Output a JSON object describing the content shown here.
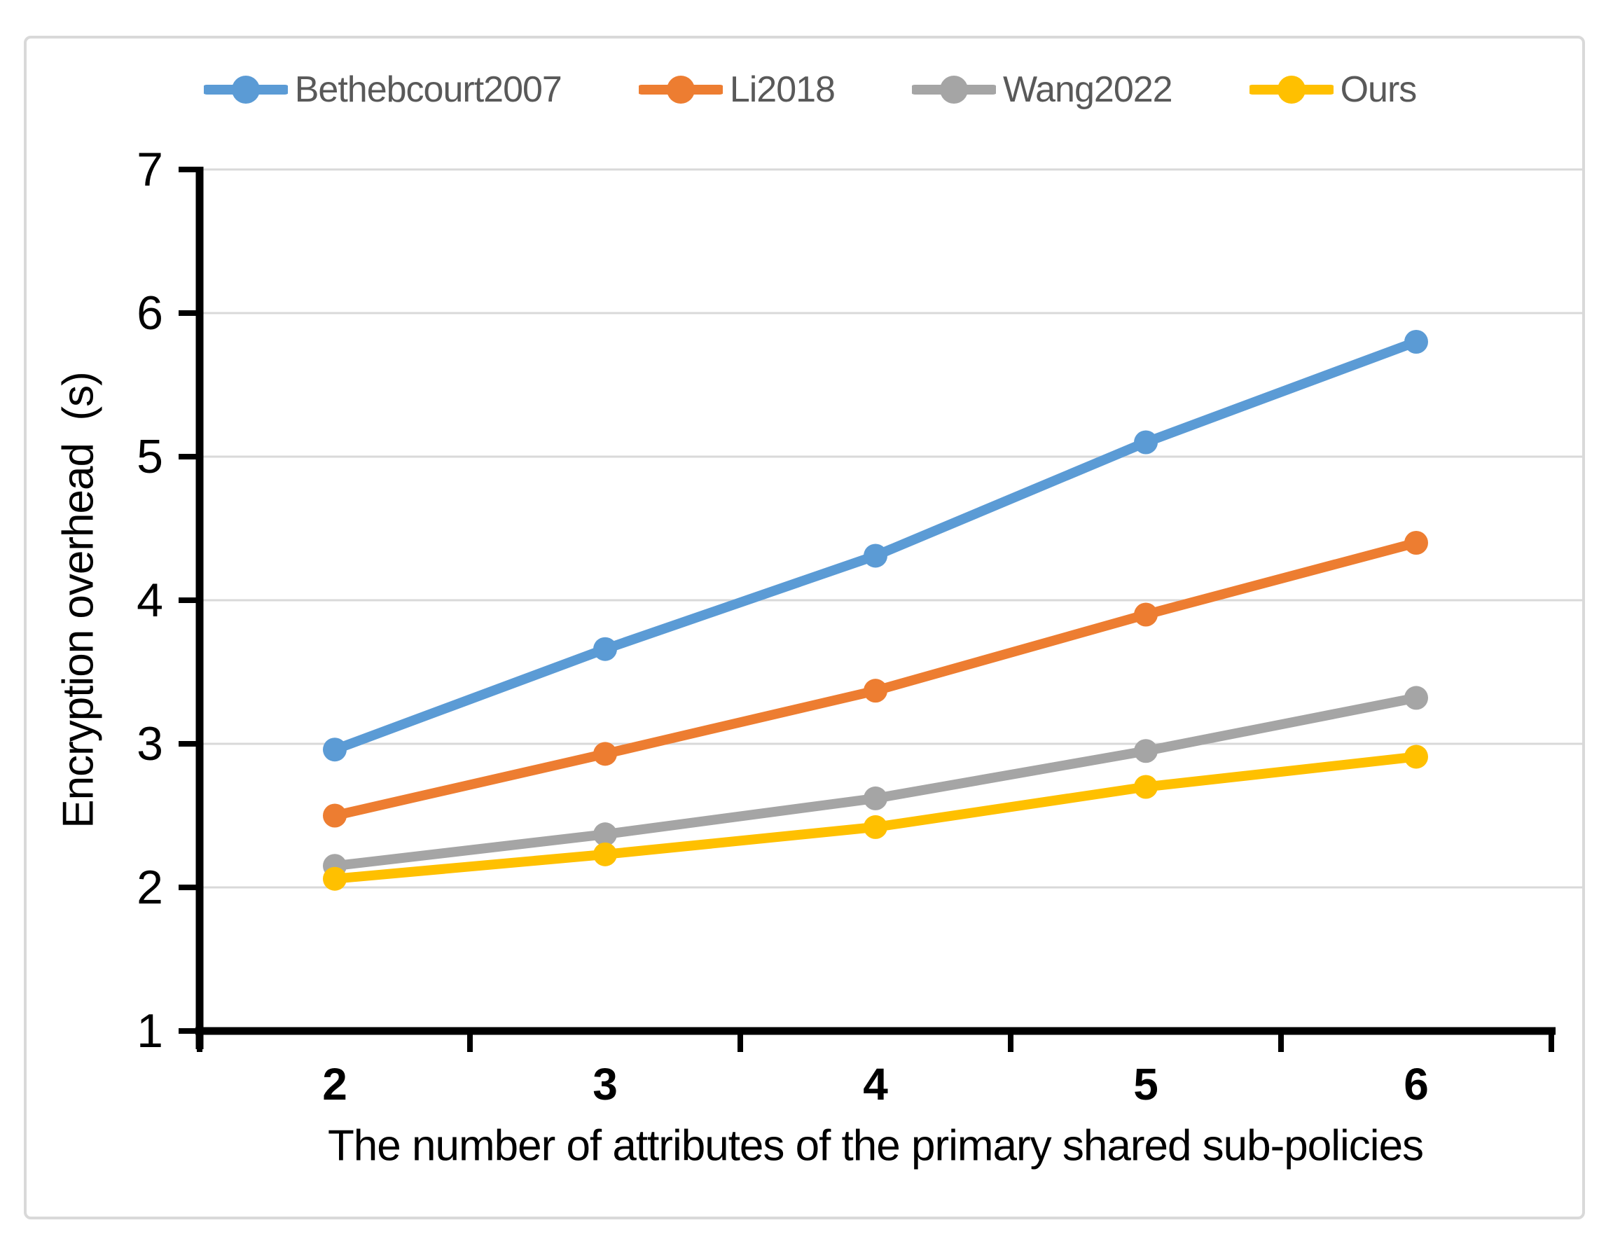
{
  "figure": {
    "type_note": "line chart figure with outer light-gray rounded frame"
  },
  "chart_data": {
    "type": "line",
    "x": [
      2,
      3,
      4,
      5,
      6
    ],
    "xlabel": "The number of attributes of the primary shared sub-policies",
    "ylabel": "Encryption overhead  (s)",
    "ylim": [
      1,
      7
    ],
    "yticks": [
      1,
      2,
      3,
      4,
      5,
      6,
      7
    ],
    "xticks": [
      2,
      3,
      4,
      5,
      6
    ],
    "grid": "horizontal",
    "legend_position": "top-center",
    "series": [
      {
        "name": "Bethebcourt2007",
        "color": "#5B9BD5",
        "values": [
          2.96,
          3.66,
          4.31,
          5.1,
          5.8
        ]
      },
      {
        "name": "Li2018",
        "color": "#ED7D31",
        "values": [
          2.5,
          2.93,
          3.37,
          3.9,
          4.4
        ]
      },
      {
        "name": "Wang2022",
        "color": "#A5A5A5",
        "values": [
          2.15,
          2.37,
          2.62,
          2.95,
          3.32
        ]
      },
      {
        "name": "Ours",
        "color": "#FFC000",
        "values": [
          2.06,
          2.23,
          2.42,
          2.7,
          2.91
        ]
      }
    ],
    "colors": {
      "gridline": "#D9D9D9",
      "axis": "#000000",
      "tick_label": "#000000",
      "legend_text": "#595959",
      "frame_border": "#D9D9D9",
      "background": "#FFFFFF"
    }
  }
}
